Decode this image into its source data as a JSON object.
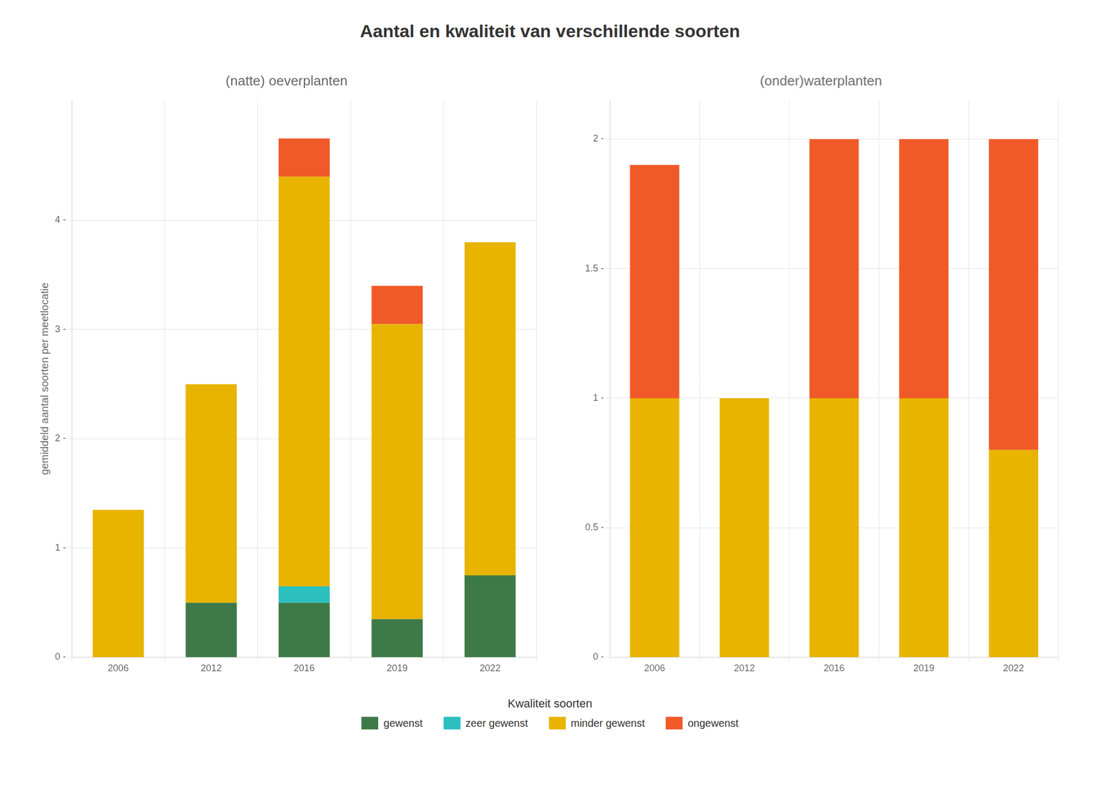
{
  "title": "Aantal en kwaliteit van verschillende soorten",
  "legend": "bottom",
  "legend_title": "Kwaliteit soorten",
  "chart_data": [
    {
      "type": "bar",
      "stacked": true,
      "grid": true,
      "title": "(natte) oeverplanten",
      "ylabel": "gemiddeld aantal soorten per meetlocatie",
      "categories": [
        "2006",
        "2012",
        "2016",
        "2019",
        "2022"
      ],
      "series": [
        {
          "name": "gewenst",
          "color": "#3E7A47",
          "values": [
            0.0,
            0.5,
            0.5,
            0.35,
            0.75
          ]
        },
        {
          "name": "zeer gewenst",
          "color": "#2BBFC0",
          "values": [
            0.0,
            0.0,
            0.15,
            0.0,
            0.0
          ]
        },
        {
          "name": "minder gewenst",
          "color": "#E8B400",
          "values": [
            1.35,
            2.0,
            3.75,
            2.7,
            3.05
          ]
        },
        {
          "name": "ongewenst",
          "color": "#F05A28",
          "values": [
            0.0,
            0.0,
            0.35,
            0.35,
            0.0
          ]
        }
      ],
      "ylim": [
        0,
        5.1
      ],
      "yticks": [
        {
          "value": 0,
          "label": "0 -"
        },
        {
          "value": 1,
          "label": "1 -"
        },
        {
          "value": 2,
          "label": "2 -"
        },
        {
          "value": 3,
          "label": "3 -"
        },
        {
          "value": 4,
          "label": "4 -"
        }
      ]
    },
    {
      "type": "bar",
      "stacked": true,
      "grid": true,
      "title": "(onder)waterplanten",
      "categories": [
        "2006",
        "2012",
        "2016",
        "2019",
        "2022"
      ],
      "series": [
        {
          "name": "gewenst",
          "color": "#3E7A47",
          "values": [
            0.0,
            0.0,
            0.0,
            0.0,
            0.0
          ]
        },
        {
          "name": "zeer gewenst",
          "color": "#2BBFC0",
          "values": [
            0.0,
            0.0,
            0.0,
            0.0,
            0.0
          ]
        },
        {
          "name": "minder gewenst",
          "color": "#E8B400",
          "values": [
            1.0,
            1.0,
            1.0,
            1.0,
            0.8
          ]
        },
        {
          "name": "ongewenst",
          "color": "#F05A28",
          "values": [
            0.9,
            0.0,
            1.0,
            1.0,
            1.2
          ]
        }
      ],
      "ylim": [
        0,
        2.15
      ],
      "yticks": [
        {
          "value": 0.0,
          "label": "0 -"
        },
        {
          "value": 0.5,
          "label": "0.5 -"
        },
        {
          "value": 1.0,
          "label": "1 -"
        },
        {
          "value": 1.5,
          "label": "1.5 -"
        },
        {
          "value": 2.0,
          "label": "2 -"
        }
      ]
    }
  ]
}
